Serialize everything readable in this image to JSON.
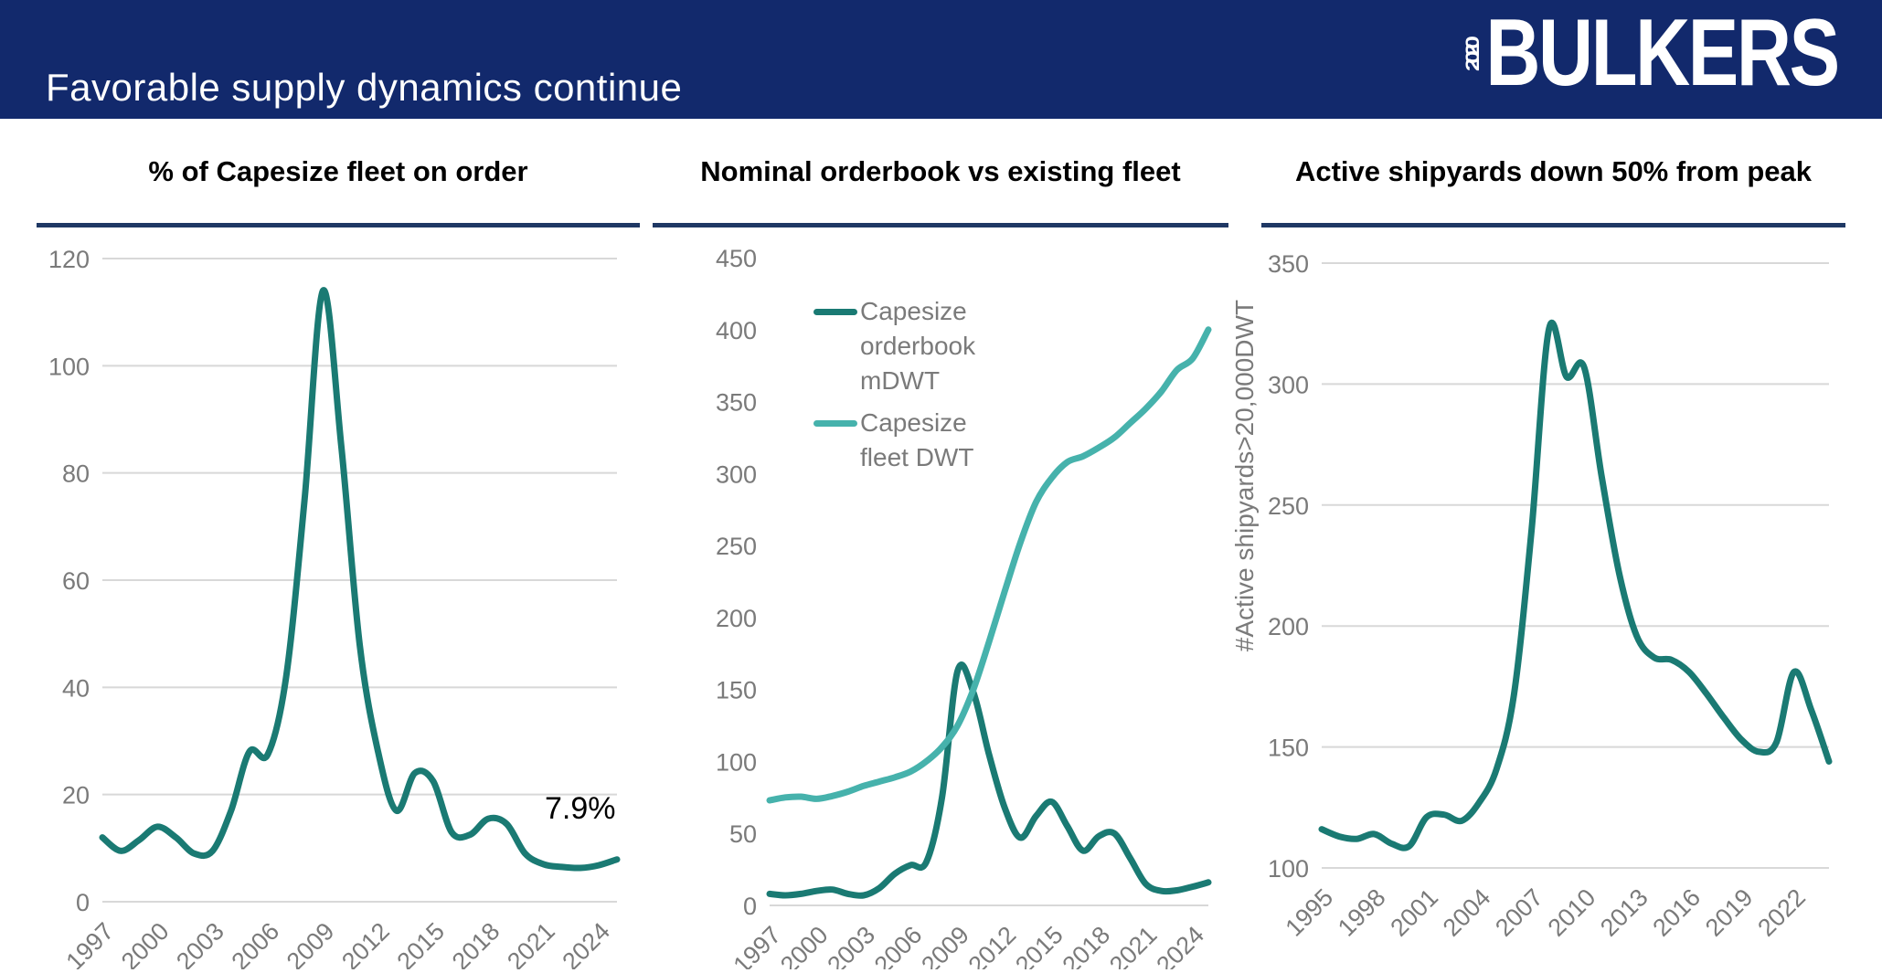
{
  "header": {
    "title": "Favorable supply dynamics continue",
    "logo_prefix": "2020",
    "logo_name": "BULKERS"
  },
  "colors": {
    "header_bg": "#12296C",
    "title_rule": "#1F3864",
    "dark_teal": "#1A7A73",
    "light_teal": "#46B2AC",
    "tick_gray": "#7A7A7A",
    "grid_gray": "#D8D8D8"
  },
  "chart_data": [
    {
      "type": "line",
      "title": "% of Capesize fleet on order",
      "annotation": "7.9%",
      "grid": true,
      "legend_position": "none",
      "ylim": [
        0,
        120
      ],
      "yticks": [
        0,
        20,
        40,
        60,
        80,
        100,
        120
      ],
      "xticks": [
        1997,
        2000,
        2003,
        2006,
        2009,
        2012,
        2015,
        2018,
        2021,
        2024
      ],
      "x": [
        1997,
        1998,
        1999,
        2000,
        2001,
        2002,
        2003,
        2004,
        2005,
        2006,
        2007,
        2008,
        2009,
        2010,
        2011,
        2012,
        2013,
        2014,
        2015,
        2016,
        2017,
        2018,
        2019,
        2020,
        2021,
        2022,
        2023,
        2024,
        2025
      ],
      "series": [
        {
          "name": "% of Capesize fleet on order",
          "color_key": "dark_teal",
          "values": [
            12,
            9.5,
            11.5,
            14,
            12,
            9,
            9.5,
            17,
            28,
            27.5,
            42,
            75,
            114,
            85,
            48,
            28,
            17,
            24,
            22.5,
            13,
            12.5,
            15.5,
            14.5,
            9,
            7,
            6.5,
            6.3,
            6.8,
            7.9
          ]
        }
      ]
    },
    {
      "type": "line",
      "title": "Nominal orderbook vs existing fleet",
      "grid": false,
      "legend_position": "upper-left",
      "ylim": [
        0,
        450
      ],
      "yticks": [
        0,
        50,
        100,
        150,
        200,
        250,
        300,
        350,
        400,
        450
      ],
      "xticks": [
        1997,
        2000,
        2003,
        2006,
        2009,
        2012,
        2015,
        2018,
        2021,
        2024
      ],
      "x": [
        1997,
        1998,
        1999,
        2000,
        2001,
        2002,
        2003,
        2004,
        2005,
        2006,
        2007,
        2008,
        2009,
        2010,
        2011,
        2012,
        2013,
        2014,
        2015,
        2016,
        2017,
        2018,
        2019,
        2020,
        2021,
        2022,
        2023,
        2024,
        2025
      ],
      "series": [
        {
          "name": "Capesize orderbook mDWT",
          "color_key": "dark_teal",
          "values": [
            8,
            7,
            8,
            10,
            11,
            8,
            7,
            12,
            22,
            28,
            30,
            75,
            163,
            148,
            105,
            68,
            47,
            62,
            72,
            55,
            38,
            48,
            50,
            33,
            15,
            10,
            10.5,
            13,
            16
          ]
        },
        {
          "name": "Capesize fleet DWT",
          "color_key": "light_teal",
          "values": [
            73,
            75,
            75.5,
            74,
            76,
            79,
            83,
            86,
            89,
            93,
            100,
            110,
            125,
            150,
            183,
            218,
            252,
            280,
            297,
            308,
            312,
            318,
            325,
            335,
            345,
            357,
            372,
            380,
            400
          ]
        }
      ]
    },
    {
      "type": "line",
      "title": "Active shipyards down 50% from peak",
      "ylabel": "#Active shipyards>20,000DWT",
      "grid": true,
      "legend_position": "none",
      "ylim": [
        100,
        350
      ],
      "yticks": [
        100,
        150,
        200,
        250,
        300,
        350
      ],
      "xticks": [
        1995,
        1998,
        2001,
        2004,
        2007,
        2010,
        2013,
        2016,
        2019,
        2022
      ],
      "x": [
        1995,
        1996,
        1997,
        1998,
        1999,
        2000,
        2001,
        2002,
        2003,
        2004,
        2005,
        2006,
        2007,
        2008,
        2009,
        2010,
        2011,
        2012,
        2013,
        2014,
        2015,
        2016,
        2017,
        2018,
        2019,
        2020,
        2021,
        2022,
        2023,
        2024
      ],
      "series": [
        {
          "name": "#Active shipyards>20,000DWT",
          "color_key": "dark_teal",
          "values": [
            116,
            113,
            112,
            114,
            110,
            109,
            121,
            122,
            119.5,
            127,
            141,
            172,
            240,
            323,
            303,
            307,
            262,
            222,
            196,
            187,
            186,
            181,
            172,
            162,
            153,
            148,
            152,
            181,
            165,
            144
          ]
        }
      ]
    }
  ]
}
